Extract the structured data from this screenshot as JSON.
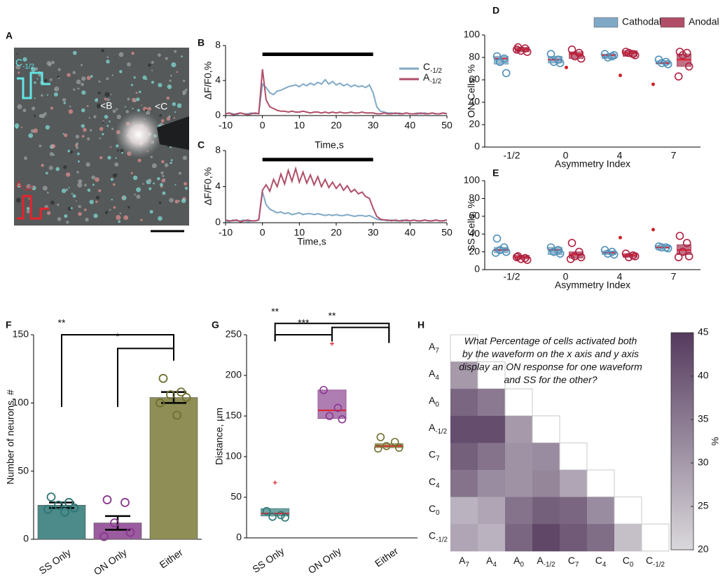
{
  "image_panel": {
    "panel_label": "A",
    "waveform_labels": [
      {
        "base": "C",
        "sub": "-1/2"
      },
      {
        "base": "A",
        "sub": "-1/2"
      }
    ],
    "cell_labels": [
      "<B",
      "<C"
    ]
  },
  "chart_data": [
    {
      "type": "line",
      "panel_label": "B",
      "ylabel": "ΔF/F0,%",
      "xlabel": "Time,s",
      "x": [
        -10,
        -9,
        -8,
        -7,
        -6,
        -5,
        -4,
        -3,
        -2,
        -1,
        0,
        1,
        2,
        3,
        4,
        5,
        6,
        7,
        8,
        9,
        10,
        11,
        12,
        13,
        14,
        15,
        16,
        17,
        18,
        19,
        20,
        21,
        22,
        23,
        24,
        25,
        26,
        27,
        28,
        29,
        30,
        31,
        32,
        33,
        34,
        35,
        36,
        37,
        38,
        39,
        40,
        41,
        42,
        43,
        44,
        45,
        46,
        47,
        48,
        49,
        50
      ],
      "xlim": [
        -10,
        50
      ],
      "xticks": [
        -10,
        0,
        10,
        20,
        30,
        40,
        50
      ],
      "ylim": [
        0,
        8
      ],
      "yticks": [
        0,
        4,
        8
      ],
      "stimulus_bar": {
        "x": [
          0,
          30
        ],
        "y": 7
      },
      "legend": true,
      "series": [
        {
          "name": {
            "base": "C",
            "sub": "-1/2"
          },
          "color": "#7fa9c6",
          "values": [
            0.2,
            0.3,
            0.2,
            0.1,
            0.3,
            0.2,
            0.2,
            0.3,
            0.2,
            0.3,
            3.6,
            3.2,
            2.6,
            2.4,
            2.8,
            2.9,
            3.1,
            3.3,
            3.4,
            3.5,
            3.3,
            3.6,
            3.4,
            3.7,
            3.5,
            3.8,
            3.6,
            4.1,
            3.6,
            3.9,
            3.5,
            3.7,
            3.4,
            3.6,
            3.3,
            3.5,
            3.3,
            3.4,
            3.2,
            3.5,
            2.6,
            1.0,
            0.5,
            0.4,
            0.3,
            0.3,
            0.2,
            0.3,
            0.2,
            0.3,
            0.2,
            0.2,
            0.3,
            0.2,
            0.3,
            0.2,
            0.3,
            0.2,
            0.2,
            0.3,
            0.2
          ]
        },
        {
          "name": {
            "base": "A",
            "sub": "-1/2"
          },
          "color": "#b04e68",
          "values": [
            0.2,
            0.3,
            0.1,
            0.2,
            0.3,
            0.2,
            0.1,
            0.2,
            0.3,
            0.2,
            5.3,
            1.8,
            1.0,
            0.8,
            0.6,
            0.5,
            0.5,
            0.4,
            0.5,
            0.4,
            0.4,
            0.5,
            0.4,
            0.3,
            0.4,
            0.4,
            0.3,
            0.4,
            0.3,
            0.4,
            0.3,
            0.4,
            0.3,
            0.3,
            0.4,
            0.3,
            0.3,
            0.4,
            0.3,
            0.3,
            0.3,
            0.2,
            0.2,
            0.3,
            0.2,
            0.2,
            0.3,
            0.2,
            0.2,
            0.3,
            0.2,
            0.2,
            0.2,
            0.3,
            0.2,
            0.2,
            0.3,
            0.2,
            0.2,
            0.3,
            0.2
          ]
        }
      ]
    },
    {
      "type": "line",
      "panel_label": "C",
      "ylabel": "ΔF/F0,%",
      "xlabel": "Time,s",
      "x": [
        -10,
        -9,
        -8,
        -7,
        -6,
        -5,
        -4,
        -3,
        -2,
        -1,
        0,
        1,
        2,
        3,
        4,
        5,
        6,
        7,
        8,
        9,
        10,
        11,
        12,
        13,
        14,
        15,
        16,
        17,
        18,
        19,
        20,
        21,
        22,
        23,
        24,
        25,
        26,
        27,
        28,
        29,
        30,
        31,
        32,
        33,
        34,
        35,
        36,
        37,
        38,
        39,
        40,
        41,
        42,
        43,
        44,
        45,
        46,
        47,
        48,
        49,
        50
      ],
      "xlim": [
        -10,
        50
      ],
      "xticks": [
        -10,
        0,
        10,
        20,
        30,
        40,
        50
      ],
      "ylim": [
        0,
        8
      ],
      "yticks": [
        0,
        4,
        8
      ],
      "stimulus_bar": {
        "x": [
          0,
          30
        ],
        "y": 7
      },
      "legend": false,
      "series": [
        {
          "name": {
            "base": "C",
            "sub": "-1/2"
          },
          "color": "#7fa9c6",
          "values": [
            0.2,
            0.1,
            0.3,
            0.2,
            0.2,
            0.3,
            0.1,
            0.2,
            0.2,
            0.3,
            3.4,
            2.0,
            1.5,
            1.3,
            1.1,
            1.2,
            1.0,
            1.1,
            0.9,
            1.0,
            1.1,
            0.9,
            1.0,
            1.0,
            0.9,
            1.0,
            0.9,
            0.8,
            0.9,
            0.8,
            0.9,
            0.8,
            0.8,
            0.9,
            0.8,
            0.7,
            0.8,
            0.8,
            0.7,
            0.8,
            0.6,
            0.4,
            0.3,
            0.3,
            0.2,
            0.3,
            0.2,
            0.2,
            0.3,
            0.2,
            0.2,
            0.3,
            0.2,
            0.2,
            0.3,
            0.2,
            0.2,
            0.3,
            0.2,
            0.2,
            0.3
          ]
        },
        {
          "name": {
            "base": "A",
            "sub": "-1/2"
          },
          "color": "#b04e68",
          "values": [
            0.3,
            0.2,
            0.2,
            0.3,
            0.1,
            0.2,
            0.3,
            0.2,
            0.2,
            0.3,
            3.6,
            4.2,
            3.5,
            4.8,
            4.0,
            5.4,
            4.3,
            5.8,
            4.6,
            6.0,
            4.5,
            5.6,
            4.4,
            5.3,
            4.2,
            5.1,
            4.0,
            4.8,
            3.9,
            4.5,
            3.8,
            4.3,
            3.6,
            4.1,
            3.4,
            3.7,
            3.2,
            3.4,
            2.9,
            2.7,
            1.6,
            0.7,
            0.4,
            0.3,
            0.3,
            0.2,
            0.3,
            0.2,
            0.2,
            0.3,
            0.2,
            0.3,
            0.2,
            0.2,
            0.3,
            0.2,
            0.2,
            0.3,
            0.2,
            0.2,
            0.3
          ]
        }
      ]
    },
    {
      "type": "box",
      "panel_label": "D",
      "ylabel": "ON Cells, %",
      "xlabel": "Asymmetry Index",
      "categories": [
        "-1/2",
        "0",
        "4",
        "7"
      ],
      "ylim": [
        0,
        100
      ],
      "yticks": [
        0,
        20,
        40,
        60,
        80,
        100
      ],
      "legend": true,
      "outlier_marker": "dot",
      "series": [
        {
          "name": "Cathodal",
          "color": "#7fa9c6",
          "point_color": "#4f8fb8",
          "boxes": [
            {
              "q1": 74,
              "median": 79,
              "q3": 81,
              "points": [
                81,
                79,
                76,
                66
              ],
              "outliers": []
            },
            {
              "q1": 75,
              "median": 78,
              "q3": 81,
              "points": [
                83,
                78,
                76,
                75
              ],
              "outliers": []
            },
            {
              "q1": 79,
              "median": 82,
              "q3": 83,
              "points": [
                83,
                81,
                80,
                82
              ],
              "outliers": []
            },
            {
              "q1": 74,
              "median": 75,
              "q3": 77,
              "points": [
                78,
                76,
                75,
                74
              ],
              "outliers": [
                56
              ]
            }
          ]
        },
        {
          "name": "Anodal",
          "color": "#b04e68",
          "point_color": "#b0203f",
          "boxes": [
            {
              "q1": 85,
              "median": 87,
              "q3": 89,
              "points": [
                89,
                88,
                86,
                85,
                87
              ],
              "outliers": []
            },
            {
              "q1": 79,
              "median": 83,
              "q3": 85,
              "points": [
                87,
                84,
                81,
                79
              ],
              "outliers": [
                71
              ]
            },
            {
              "q1": 81,
              "median": 84,
              "q3": 86,
              "points": [
                85,
                83,
                84,
                82
              ],
              "outliers": [
                64
              ]
            },
            {
              "q1": 72,
              "median": 78,
              "q3": 83,
              "points": [
                85,
                84,
                82,
                72,
                63
              ],
              "outliers": []
            }
          ]
        }
      ]
    },
    {
      "type": "box",
      "panel_label": "E",
      "ylabel": "SS Cells, %",
      "xlabel": "Asymmetry Index",
      "categories": [
        "-1/2",
        "0",
        "4",
        "7"
      ],
      "ylim": [
        0,
        100
      ],
      "yticks": [
        0,
        20,
        40,
        60,
        80,
        100
      ],
      "legend": false,
      "outlier_marker": "dot",
      "series": [
        {
          "name": "Cathodal",
          "color": "#7fa9c6",
          "point_color": "#4f8fb8",
          "boxes": [
            {
              "q1": 19,
              "median": 22,
              "q3": 25,
              "points": [
                35,
                25,
                22,
                20,
                19
              ],
              "outliers": []
            },
            {
              "q1": 17,
              "median": 22,
              "q3": 25,
              "points": [
                25,
                22,
                20,
                18
              ],
              "outliers": []
            },
            {
              "q1": 17,
              "median": 19,
              "q3": 21,
              "points": [
                22,
                20,
                18,
                17
              ],
              "outliers": []
            },
            {
              "q1": 24,
              "median": 25,
              "q3": 27,
              "points": [
                26,
                25,
                25,
                24
              ],
              "outliers": [
                45
              ]
            }
          ]
        },
        {
          "name": "Anodal",
          "color": "#b04e68",
          "point_color": "#b0203f",
          "boxes": [
            {
              "q1": 12,
              "median": 14,
              "q3": 16,
              "points": [
                15,
                13,
                12,
                11,
                14
              ],
              "outliers": []
            },
            {
              "q1": 13,
              "median": 17,
              "q3": 20,
              "points": [
                30,
                20,
                15,
                14,
                12
              ],
              "outliers": []
            },
            {
              "q1": 14,
              "median": 16,
              "q3": 18,
              "points": [
                18,
                16,
                14,
                15
              ],
              "outliers": [
                36
              ]
            },
            {
              "q1": 17,
              "median": 22,
              "q3": 28,
              "points": [
                38,
                30,
                20,
                15,
                14
              ],
              "outliers": []
            }
          ]
        }
      ]
    },
    {
      "type": "bar",
      "panel_label": "F",
      "ylabel": "Number of neurons, #",
      "categories": [
        "SS Only",
        "ON Only",
        "Either"
      ],
      "values": [
        25,
        12,
        104
      ],
      "errors": [
        2,
        5,
        4
      ],
      "colors": [
        "#4c8b89",
        "#9a5c9e",
        "#8e8e56"
      ],
      "point_colors": [
        "#2a7474",
        "#8a3590",
        "#707030"
      ],
      "points": [
        [
          31,
          27,
          25,
          23,
          22,
          20
        ],
        [
          29,
          27,
          12,
          5,
          2
        ],
        [
          118,
          108,
          106,
          104,
          100,
          91
        ]
      ],
      "ylim": [
        0,
        150
      ],
      "yticks": [
        0,
        50,
        100,
        150
      ],
      "significance": [
        {
          "label": "**",
          "from": 0,
          "to": 2,
          "level": 150,
          "start": 97,
          "end": 131
        },
        {
          "label": "*",
          "from": 1,
          "to": 2,
          "level": 140,
          "start": 97,
          "end": 131
        }
      ]
    },
    {
      "type": "box",
      "panel_label": "G",
      "ylabel": "Distance, µm",
      "categories": [
        "SS Only",
        "ON Only",
        "Either"
      ],
      "ylim": [
        0,
        250
      ],
      "yticks": [
        0,
        50,
        100,
        150,
        200,
        250
      ],
      "outlier_marker": "plus",
      "colors": [
        "#4c8b89",
        "#9a5c9e",
        "#8e8e56"
      ],
      "point_colors": [
        "#2a7474",
        "#8a3590",
        "#707030"
      ],
      "boxes": [
        {
          "q1": 27,
          "median": 30,
          "q3": 36,
          "points": [
            33,
            28,
            26,
            25
          ],
          "outliers": [
            68
          ]
        },
        {
          "q1": 147,
          "median": 157,
          "q3": 182,
          "points": [
            182,
            160,
            150,
            146
          ],
          "outliers": [
            239
          ]
        },
        {
          "q1": 111,
          "median": 113,
          "q3": 116,
          "points": [
            124,
            118,
            113,
            111,
            110
          ],
          "outliers": []
        }
      ],
      "significance": [
        {
          "label": "**",
          "from": 0,
          "to": 2,
          "level": 264,
          "start": 242,
          "end": 240
        },
        {
          "label": "***",
          "from": 0,
          "to": 1,
          "level": 250,
          "start": 242,
          "end": 242
        },
        {
          "label": "**",
          "from": 1,
          "to": 2,
          "level": 259,
          "start": 250,
          "end": 240
        }
      ]
    },
    {
      "type": "heatmap",
      "panel_label": "H",
      "annotation": [
        "What Percentage of cells activated both",
        "by the waveform on the x axis and y axis",
        "display an ON response for one waveform",
        "and SS for the other?"
      ],
      "labels": [
        {
          "base": "A",
          "sub": "7"
        },
        {
          "base": "A",
          "sub": "4"
        },
        {
          "base": "A",
          "sub": "0"
        },
        {
          "base": "A",
          "sub": "-1/2"
        },
        {
          "base": "C",
          "sub": "7"
        },
        {
          "base": "C",
          "sub": "4"
        },
        {
          "base": "C",
          "sub": "0"
        },
        {
          "base": "C",
          "sub": "-1/2"
        }
      ],
      "values": [
        [],
        [
          30
        ],
        [
          38,
          35
        ],
        [
          42,
          42,
          30
        ],
        [
          39,
          36,
          31,
          32
        ],
        [
          36,
          32,
          31,
          33,
          28
        ],
        [
          26,
          28,
          36,
          39,
          38,
          32
        ],
        [
          28,
          26,
          38,
          43,
          40,
          37,
          24
        ]
      ],
      "vlim": [
        20,
        45
      ],
      "colorbar_ticks": [
        20,
        25,
        30,
        35,
        40,
        45
      ],
      "colorbar_label": "%",
      "colormap": [
        "#dad8dc",
        "#553a5e"
      ]
    }
  ]
}
